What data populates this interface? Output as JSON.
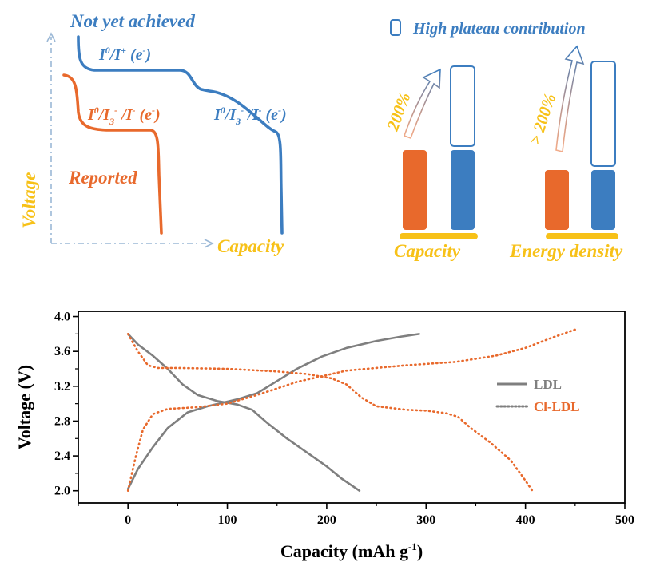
{
  "colors": {
    "orange": "#E8692C",
    "blue": "#3C7DC0",
    "yellow": "#F7C118",
    "gray": "#7F7F7F",
    "axis": "#000000"
  },
  "schematic": {
    "not_yet_achieved": "Not yet achieved",
    "reported": "Reported",
    "voltage_label": "Voltage",
    "capacity_label": "Capacity",
    "blue_label_upper": "I0/I+ (e-)",
    "blue_label_lower": "I0/I3-/I- (e-)",
    "orange_label": "I0/I3-/I- (e-)"
  },
  "bars_panel": {
    "legend": "High plateau contribution",
    "group1": {
      "label": "Capacity",
      "increase": "200%"
    },
    "group2": {
      "label": "Energy density",
      "increase": "> 200%"
    }
  },
  "chart_data": {
    "type": "line",
    "xlabel": "Capacity (mAh g-1)",
    "ylabel": "Voltage (V)",
    "xlim": [
      -50,
      500
    ],
    "ylim": [
      1.86,
      4.06
    ],
    "xticks": [
      0,
      100,
      200,
      300,
      400,
      500
    ],
    "yticks": [
      2.0,
      2.4,
      2.8,
      3.2,
      3.6,
      4.0
    ],
    "series": [
      {
        "name": "LDL",
        "style": "solid",
        "color": "#7F7F7F",
        "segments": [
          [
            [
              0,
              3.8
            ],
            [
              10,
              3.68
            ],
            [
              25,
              3.55
            ],
            [
              40,
              3.4
            ],
            [
              55,
              3.22
            ],
            [
              70,
              3.1
            ],
            [
              90,
              3.03
            ],
            [
              110,
              2.99
            ],
            [
              125,
              2.93
            ],
            [
              140,
              2.78
            ],
            [
              160,
              2.6
            ],
            [
              180,
              2.44
            ],
            [
              200,
              2.28
            ],
            [
              215,
              2.14
            ],
            [
              233,
              2.0
            ]
          ],
          [
            [
              0,
              2.02
            ],
            [
              10,
              2.25
            ],
            [
              25,
              2.5
            ],
            [
              40,
              2.72
            ],
            [
              60,
              2.9
            ],
            [
              80,
              2.97
            ],
            [
              110,
              3.05
            ],
            [
              130,
              3.12
            ],
            [
              150,
              3.26
            ],
            [
              170,
              3.4
            ],
            [
              195,
              3.54
            ],
            [
              220,
              3.64
            ],
            [
              250,
              3.72
            ],
            [
              275,
              3.77
            ],
            [
              293,
              3.8
            ]
          ]
        ]
      },
      {
        "name": "Cl-LDL",
        "style": "dotted",
        "color": "#E8692C",
        "segments": [
          [
            [
              0,
              3.8
            ],
            [
              10,
              3.6
            ],
            [
              20,
              3.44
            ],
            [
              30,
              3.41
            ],
            [
              50,
              3.41
            ],
            [
              100,
              3.4
            ],
            [
              150,
              3.37
            ],
            [
              180,
              3.34
            ],
            [
              205,
              3.29
            ],
            [
              220,
              3.22
            ],
            [
              235,
              3.07
            ],
            [
              250,
              2.97
            ],
            [
              280,
              2.93
            ],
            [
              300,
              2.92
            ],
            [
              320,
              2.89
            ],
            [
              332,
              2.85
            ],
            [
              345,
              2.72
            ],
            [
              365,
              2.55
            ],
            [
              385,
              2.35
            ],
            [
              398,
              2.15
            ],
            [
              407,
              2.0
            ]
          ],
          [
            [
              0,
              2.0
            ],
            [
              8,
              2.4
            ],
            [
              15,
              2.7
            ],
            [
              25,
              2.88
            ],
            [
              40,
              2.94
            ],
            [
              70,
              2.96
            ],
            [
              100,
              3.0
            ],
            [
              130,
              3.1
            ],
            [
              170,
              3.25
            ],
            [
              220,
              3.38
            ],
            [
              280,
              3.44
            ],
            [
              330,
              3.48
            ],
            [
              370,
              3.55
            ],
            [
              400,
              3.64
            ],
            [
              425,
              3.75
            ],
            [
              450,
              3.85
            ]
          ]
        ]
      }
    ]
  }
}
